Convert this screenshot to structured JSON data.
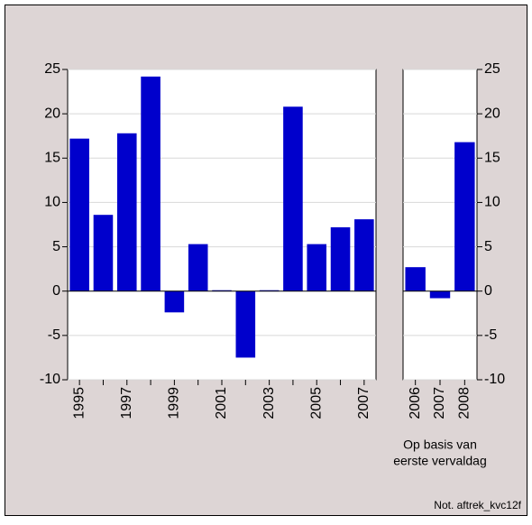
{
  "note": "Not. aftrek_kvc12f",
  "chart_data": [
    {
      "type": "bar",
      "categories": [
        "1995",
        null,
        "1997",
        null,
        "1999",
        null,
        "2001",
        null,
        "2003",
        null,
        "2005",
        null,
        "2007"
      ],
      "values": [
        17.2,
        8.6,
        17.8,
        24.2,
        -2.4,
        5.3,
        0.1,
        -7.5,
        0.1,
        20.8,
        5.3,
        7.2,
        8.1
      ],
      "color": "#0000cc",
      "ylim": [
        -10,
        25
      ],
      "yticks": [
        -10,
        -5,
        0,
        5,
        10,
        15,
        20,
        25
      ],
      "grid": true
    },
    {
      "type": "bar",
      "categories": [
        "2006",
        "2007",
        "2008"
      ],
      "series": [
        {
          "color": "#0000cc",
          "values": [
            2.7,
            -0.8,
            16.8
          ],
          "axis": "y2"
        }
      ],
      "xlabel": [
        "Op basis van",
        "eerste vervaldag"
      ],
      "y2lim": [
        -10,
        25
      ],
      "y2ticks": [
        -10,
        -5,
        0,
        5,
        10,
        15,
        20,
        25
      ],
      "grid": true
    }
  ]
}
